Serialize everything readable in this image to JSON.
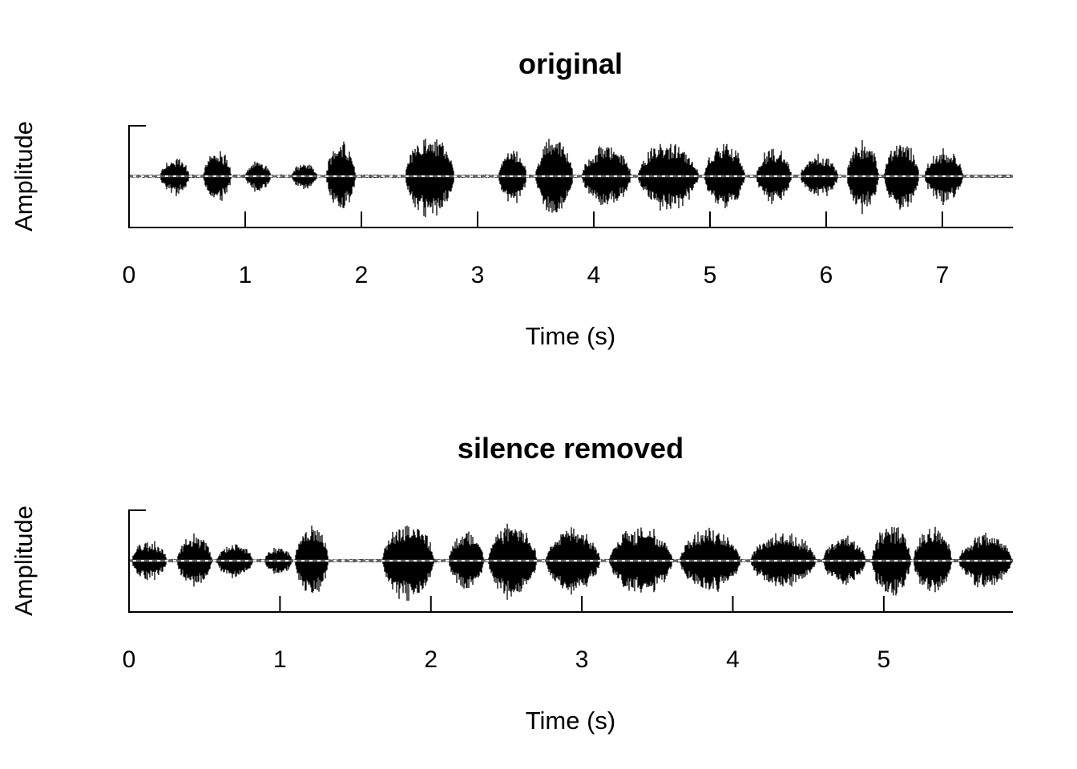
{
  "chart_data": [
    {
      "type": "line",
      "title": "original",
      "xlabel": "Time (s)",
      "ylabel": "Amplitude",
      "xlim": [
        0,
        7.6
      ],
      "ylim": [
        -1,
        1
      ],
      "x_ticks": [
        0,
        1,
        2,
        3,
        4,
        5,
        6,
        7
      ],
      "tick_labels": [
        "0",
        "1",
        "2",
        "3",
        "4",
        "5",
        "6",
        "7"
      ],
      "y_ticks_labeled": false,
      "reference_line": "dashed at amplitude 0",
      "duration_s": 7.6,
      "segments": [
        {
          "start": 0.27,
          "end": 0.52,
          "amp": 0.42
        },
        {
          "start": 0.64,
          "end": 0.88,
          "amp": 0.58
        },
        {
          "start": 1.0,
          "end": 1.22,
          "amp": 0.35
        },
        {
          "start": 1.4,
          "end": 1.62,
          "amp": 0.3
        },
        {
          "start": 1.7,
          "end": 1.95,
          "amp": 0.78
        },
        {
          "start": 2.38,
          "end": 2.8,
          "amp": 0.92
        },
        {
          "start": 3.18,
          "end": 3.42,
          "amp": 0.62
        },
        {
          "start": 3.5,
          "end": 3.82,
          "amp": 0.85
        },
        {
          "start": 3.9,
          "end": 4.32,
          "amp": 0.7
        },
        {
          "start": 4.38,
          "end": 4.9,
          "amp": 0.78
        },
        {
          "start": 4.95,
          "end": 5.3,
          "amp": 0.72
        },
        {
          "start": 5.4,
          "end": 5.7,
          "amp": 0.62
        },
        {
          "start": 5.78,
          "end": 6.1,
          "amp": 0.5
        },
        {
          "start": 6.18,
          "end": 6.45,
          "amp": 0.82
        },
        {
          "start": 6.5,
          "end": 6.8,
          "amp": 0.8
        },
        {
          "start": 6.85,
          "end": 7.18,
          "amp": 0.62
        }
      ]
    },
    {
      "type": "line",
      "title": "silence removed",
      "xlabel": "Time (s)",
      "ylabel": "Amplitude",
      "xlim": [
        0,
        5.85
      ],
      "ylim": [
        -1,
        1
      ],
      "x_ticks": [
        0,
        1,
        2,
        3,
        4,
        5
      ],
      "tick_labels": [
        "0",
        "1",
        "2",
        "3",
        "4",
        "5"
      ],
      "y_ticks_labeled": false,
      "reference_line": "dashed at amplitude 0",
      "duration_s": 5.85,
      "segments": [
        {
          "start": 0.02,
          "end": 0.25,
          "amp": 0.45
        },
        {
          "start": 0.32,
          "end": 0.55,
          "amp": 0.6
        },
        {
          "start": 0.58,
          "end": 0.82,
          "amp": 0.4
        },
        {
          "start": 0.9,
          "end": 1.08,
          "amp": 0.33
        },
        {
          "start": 1.1,
          "end": 1.32,
          "amp": 0.82
        },
        {
          "start": 1.68,
          "end": 2.02,
          "amp": 0.93
        },
        {
          "start": 2.12,
          "end": 2.35,
          "amp": 0.65
        },
        {
          "start": 2.38,
          "end": 2.7,
          "amp": 0.86
        },
        {
          "start": 2.76,
          "end": 3.12,
          "amp": 0.72
        },
        {
          "start": 3.18,
          "end": 3.6,
          "amp": 0.78
        },
        {
          "start": 3.65,
          "end": 4.05,
          "amp": 0.72
        },
        {
          "start": 4.12,
          "end": 4.55,
          "amp": 0.64
        },
        {
          "start": 4.6,
          "end": 4.88,
          "amp": 0.55
        },
        {
          "start": 4.92,
          "end": 5.18,
          "amp": 0.83
        },
        {
          "start": 5.2,
          "end": 5.45,
          "amp": 0.8
        },
        {
          "start": 5.5,
          "end": 5.85,
          "amp": 0.62
        }
      ]
    }
  ]
}
